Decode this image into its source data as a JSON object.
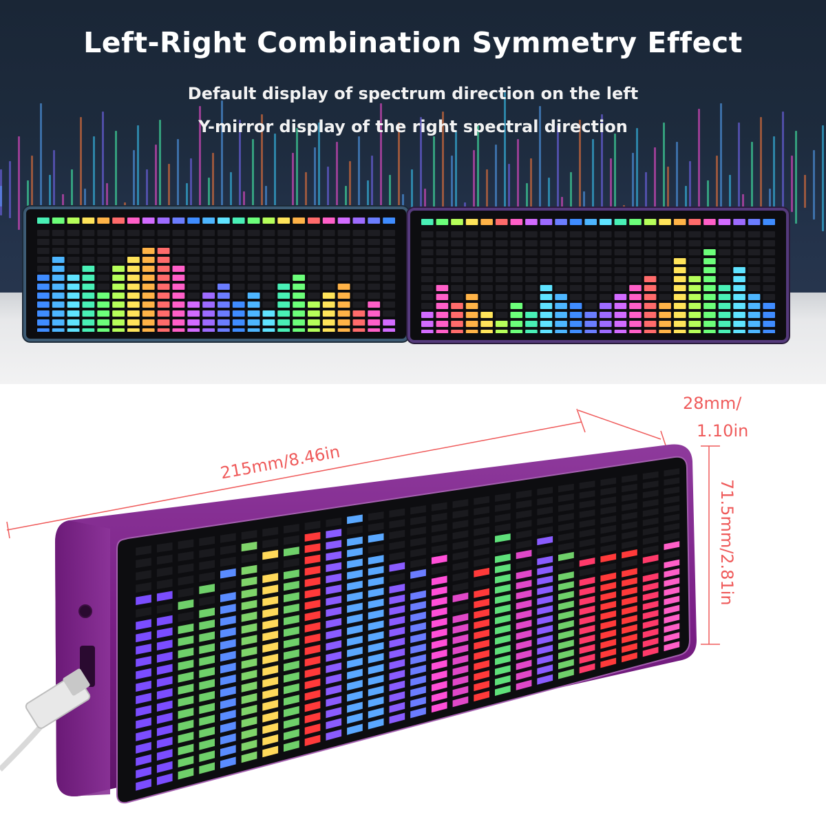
{
  "headline": "Left-Right Combination Symmetry Effect",
  "subline_1": "Default display of spectrum direction on the left",
  "subline_2": "Y-mirror display of the right spectral direction",
  "dimensions": {
    "length": "215mm/8.46in",
    "depth_line_1": "28mm/",
    "depth_line_2": "1.10in",
    "height": "71.5mm/2.81in"
  },
  "colors": {
    "background_top": "#1d2b3d",
    "device_body": "#7a1f86",
    "dimension_lines": "#ef5a5a",
    "screen": "#0d0d10"
  },
  "left_display_levels": [
    7,
    9,
    7,
    8,
    5,
    8,
    9,
    10,
    10,
    8,
    4,
    5,
    6,
    4,
    5,
    3,
    6,
    7,
    4,
    5,
    6,
    3,
    4,
    2
  ],
  "right_display_levels": [
    3,
    6,
    4,
    5,
    3,
    2,
    4,
    3,
    6,
    5,
    4,
    3,
    4,
    5,
    6,
    7,
    4,
    9,
    7,
    10,
    6,
    8,
    5,
    4
  ],
  "front_display_levels": [
    14,
    14,
    13,
    14,
    15,
    17,
    16,
    16,
    19,
    19,
    18,
    16,
    13,
    12,
    13,
    9,
    11,
    14,
    12,
    13,
    11,
    10,
    10,
    10,
    9,
    10
  ]
}
